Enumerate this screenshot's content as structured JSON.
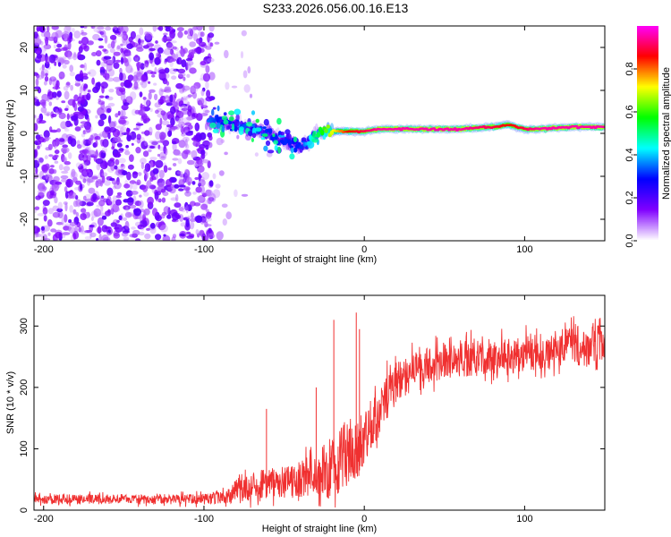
{
  "title": "S233.2026.056.00.16.E13",
  "chart_data": [
    {
      "type": "heatmap",
      "name": "spectrogram",
      "xlabel": "Height of straight line (km)",
      "ylabel": "Frequency (Hz)",
      "xlim": [
        -206,
        150
      ],
      "ylim": [
        -25,
        25
      ],
      "xticks": [
        -200,
        -100,
        0,
        100
      ],
      "yticks": [
        -20,
        -10,
        0,
        10,
        20
      ],
      "xtick_labels": [
        "-200",
        "-100",
        "0",
        "100"
      ],
      "ytick_labels": [
        "-20",
        "-10",
        "0",
        "10",
        "20"
      ],
      "colorbar": {
        "label": "Normalized spectral amplitude",
        "range": [
          0,
          1
        ],
        "ticks": [
          0,
          0.2,
          0.4,
          0.6,
          0.8
        ],
        "tick_labels": [
          "0.0",
          "0.2",
          "0.4",
          "0.6",
          "0.8"
        ],
        "colormap": [
          "#ffffff",
          "#8000ff",
          "#0000ff",
          "#00ffff",
          "#00ff00",
          "#ffff00",
          "#ff0000",
          "#ff00ff"
        ]
      },
      "features": {
        "noise_region_x": [
          -206,
          -95
        ],
        "noise_amplitude_max": 0.25,
        "signal_track": {
          "x": [
            -97,
            -90,
            -80,
            -70,
            -60,
            -50,
            -40,
            -35,
            -30,
            -20,
            -10,
            0,
            10,
            30,
            60,
            80,
            90,
            100,
            110,
            130,
            150
          ],
          "freq": [
            3,
            2.5,
            2,
            1,
            0,
            -2,
            -3,
            -2,
            0,
            0.5,
            0.5,
            0.5,
            1,
            1,
            1,
            1.5,
            2,
            1,
            1,
            1.5,
            1.5
          ],
          "amplitude": [
            0.35,
            0.3,
            0.3,
            0.35,
            0.3,
            0.3,
            0.3,
            0.4,
            0.5,
            0.7,
            0.85,
            0.9,
            0.95,
            0.95,
            0.95,
            0.9,
            0.85,
            0.9,
            0.95,
            0.95,
            0.95
          ]
        }
      }
    },
    {
      "type": "line",
      "name": "snr",
      "xlabel": "Height of straight line (km)",
      "ylabel": "SNR (10 * v/v)",
      "xlim": [
        -206,
        150
      ],
      "ylim": [
        0,
        350
      ],
      "xticks": [
        -200,
        -100,
        0,
        100
      ],
      "yticks": [
        0,
        100,
        200,
        300
      ],
      "xtick_labels": [
        "-200",
        "-100",
        "0",
        "100"
      ],
      "ytick_labels": [
        "0",
        "100",
        "200",
        "300"
      ],
      "color": "#f03030",
      "series": [
        {
          "name": "SNR",
          "x": [
            -206,
            -180,
            -150,
            -120,
            -100,
            -90,
            -80,
            -70,
            -60,
            -50,
            -40,
            -30,
            -20,
            -15,
            -10,
            -5,
            0,
            10,
            20,
            30,
            40,
            50,
            60,
            80,
            100,
            120,
            140,
            150
          ],
          "mean": [
            18,
            18,
            18,
            18,
            18,
            22,
            30,
            38,
            45,
            45,
            50,
            55,
            70,
            85,
            95,
            100,
            120,
            165,
            210,
            225,
            235,
            240,
            245,
            250,
            255,
            262,
            268,
            270
          ],
          "spread": [
            8,
            8,
            8,
            8,
            9,
            12,
            18,
            22,
            25,
            25,
            30,
            40,
            50,
            55,
            55,
            55,
            45,
            40,
            35,
            30,
            30,
            30,
            30,
            30,
            30,
            32,
            32,
            32
          ],
          "spikes": [
            {
              "x": -61,
              "y": 165
            },
            {
              "x": -30,
              "y": 200
            },
            {
              "x": -19,
              "y": 310
            },
            {
              "x": -5,
              "y": 322
            },
            {
              "x": -3,
              "y": 295
            }
          ]
        }
      ]
    }
  ]
}
